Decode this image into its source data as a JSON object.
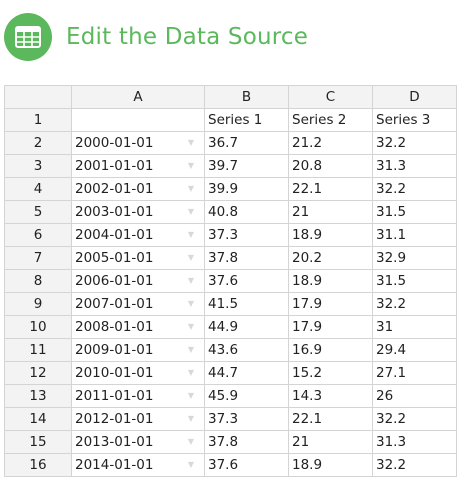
{
  "header": {
    "title": "Edit the Data Source",
    "icon": "spreadsheet-icon",
    "accent_color": "#5cb85c"
  },
  "grid": {
    "columns": [
      "A",
      "B",
      "C",
      "D"
    ],
    "rows": [
      {
        "num": "1",
        "a": "",
        "b": "Series 1",
        "c": "Series 2",
        "d": "Series 3"
      },
      {
        "num": "2",
        "a": "2000-01-01",
        "b": "36.7",
        "c": "21.2",
        "d": "32.2"
      },
      {
        "num": "3",
        "a": "2001-01-01",
        "b": "39.7",
        "c": "20.8",
        "d": "31.3"
      },
      {
        "num": "4",
        "a": "2002-01-01",
        "b": "39.9",
        "c": "22.1",
        "d": "32.2"
      },
      {
        "num": "5",
        "a": "2003-01-01",
        "b": "40.8",
        "c": "21",
        "d": "31.5"
      },
      {
        "num": "6",
        "a": "2004-01-01",
        "b": "37.3",
        "c": "18.9",
        "d": "31.1"
      },
      {
        "num": "7",
        "a": "2005-01-01",
        "b": "37.8",
        "c": "20.2",
        "d": "32.9"
      },
      {
        "num": "8",
        "a": "2006-01-01",
        "b": "37.6",
        "c": "18.9",
        "d": "31.5"
      },
      {
        "num": "9",
        "a": "2007-01-01",
        "b": "41.5",
        "c": "17.9",
        "d": "32.2"
      },
      {
        "num": "10",
        "a": "2008-01-01",
        "b": "44.9",
        "c": "17.9",
        "d": "31"
      },
      {
        "num": "11",
        "a": "2009-01-01",
        "b": "43.6",
        "c": "16.9",
        "d": "29.4"
      },
      {
        "num": "12",
        "a": "2010-01-01",
        "b": "44.7",
        "c": "15.2",
        "d": "27.1"
      },
      {
        "num": "13",
        "a": "2011-01-01",
        "b": "45.9",
        "c": "14.3",
        "d": "26"
      },
      {
        "num": "14",
        "a": "2012-01-01",
        "b": "37.3",
        "c": "22.1",
        "d": "32.2"
      },
      {
        "num": "15",
        "a": "2013-01-01",
        "b": "37.8",
        "c": "21",
        "d": "31.3"
      },
      {
        "num": "16",
        "a": "2014-01-01",
        "b": "37.6",
        "c": "18.9",
        "d": "32.2"
      }
    ]
  }
}
